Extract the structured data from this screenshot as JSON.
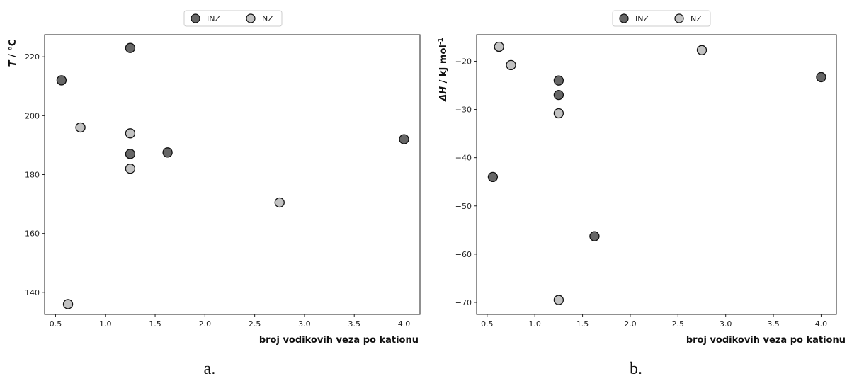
{
  "colors": {
    "INZ": "#666666",
    "NZ": "#c2c2c2",
    "edge": "#111111"
  },
  "chart_data": [
    {
      "type": "scatter",
      "caption": "a.",
      "xlabel": "broj vodikovih veza po kationu",
      "ylabel": {
        "italic": "T",
        "rest": " / °C"
      },
      "xlim": [
        0.39,
        4.16
      ],
      "ylim": [
        132.5,
        227.5
      ],
      "xticks": [
        0.5,
        1.0,
        1.5,
        2.0,
        2.5,
        3.0,
        3.5,
        4.0
      ],
      "xtick_labels": [
        "0.5",
        "1.0",
        "1.5",
        "2.0",
        "2.5",
        "3.0",
        "3.5",
        "4.0"
      ],
      "yticks": [
        140,
        160,
        180,
        200,
        220
      ],
      "ytick_labels": [
        "140",
        "160",
        "180",
        "200",
        "220"
      ],
      "legend": {
        "location": "top-center (above plot)",
        "entries": [
          "INZ",
          "NZ"
        ]
      },
      "grid": false,
      "series": [
        {
          "name": "INZ",
          "points": [
            {
              "x": 0.56,
              "y": 212
            },
            {
              "x": 1.25,
              "y": 223
            },
            {
              "x": 1.25,
              "y": 187
            },
            {
              "x": 1.625,
              "y": 187.5
            },
            {
              "x": 4.0,
              "y": 192
            }
          ]
        },
        {
          "name": "NZ",
          "points": [
            {
              "x": 0.625,
              "y": 136
            },
            {
              "x": 0.75,
              "y": 196
            },
            {
              "x": 1.25,
              "y": 194
            },
            {
              "x": 1.25,
              "y": 182
            },
            {
              "x": 2.75,
              "y": 170.5
            }
          ]
        }
      ]
    },
    {
      "type": "scatter",
      "caption": "b.",
      "xlabel": "broj vodikovih veza po kationu",
      "ylabel": {
        "italic": "ΔH",
        "rest": " / kJ mol",
        "sup": "-1"
      },
      "xlim": [
        0.39,
        4.16
      ],
      "ylim": [
        -72.5,
        -14.5
      ],
      "xticks": [
        0.5,
        1.0,
        1.5,
        2.0,
        2.5,
        3.0,
        3.5,
        4.0
      ],
      "xtick_labels": [
        "0.5",
        "1.0",
        "1.5",
        "2.0",
        "2.5",
        "3.0",
        "3.5",
        "4.0"
      ],
      "yticks": [
        -70,
        -60,
        -50,
        -40,
        -30,
        -20
      ],
      "ytick_labels": [
        "−70",
        "−60",
        "−50",
        "−40",
        "−30",
        "−20"
      ],
      "legend": {
        "location": "top-center (above plot)",
        "entries": [
          "INZ",
          "NZ"
        ]
      },
      "grid": false,
      "series": [
        {
          "name": "INZ",
          "points": [
            {
              "x": 0.56,
              "y": -44
            },
            {
              "x": 1.25,
              "y": -24
            },
            {
              "x": 1.25,
              "y": -27
            },
            {
              "x": 1.625,
              "y": -56.3
            },
            {
              "x": 4.0,
              "y": -23.3
            }
          ]
        },
        {
          "name": "NZ",
          "points": [
            {
              "x": 0.625,
              "y": -17
            },
            {
              "x": 0.75,
              "y": -20.8
            },
            {
              "x": 1.25,
              "y": -30.8
            },
            {
              "x": 1.25,
              "y": -69.5
            },
            {
              "x": 2.75,
              "y": -17.7
            }
          ]
        }
      ]
    }
  ]
}
